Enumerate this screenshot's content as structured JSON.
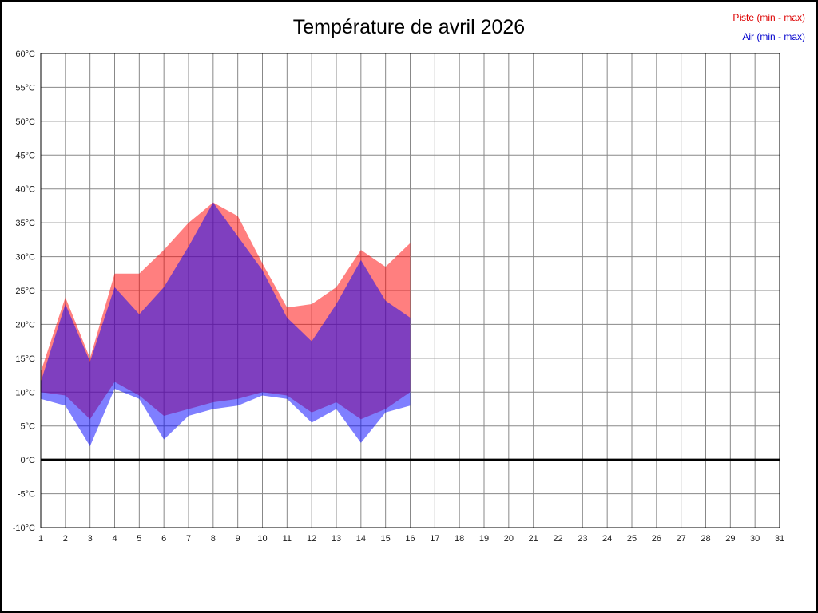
{
  "legend": [
    {
      "label": "Piste (min - max)",
      "color": "#dd0000"
    },
    {
      "label": "Air (min - max)",
      "color": "#0000cc"
    }
  ],
  "chart_data": {
    "type": "area",
    "title": "Température de avril 2026",
    "xlabel": "",
    "ylabel": "",
    "xlim": [
      1,
      31
    ],
    "ylim": [
      -10,
      60
    ],
    "grid": true,
    "grid_color": "#888888",
    "legend_position": "top-right",
    "x_ticks": [
      1,
      2,
      3,
      4,
      5,
      6,
      7,
      8,
      9,
      10,
      11,
      12,
      13,
      14,
      15,
      16,
      17,
      18,
      19,
      20,
      21,
      22,
      23,
      24,
      25,
      26,
      27,
      28,
      29,
      30,
      31
    ],
    "x_tick_labels": [
      "1",
      "2",
      "3",
      "4",
      "5",
      "6",
      "7",
      "8",
      "9",
      "10",
      "11",
      "12",
      "13",
      "14",
      "15",
      "16",
      "17",
      "18",
      "19",
      "20",
      "21",
      "22",
      "23",
      "24",
      "25",
      "26",
      "27",
      "28",
      "29",
      "30",
      "31"
    ],
    "y_ticks": [
      60,
      55,
      50,
      45,
      40,
      35,
      30,
      25,
      20,
      15,
      10,
      5,
      0,
      -5,
      -10
    ],
    "y_tick_labels": [
      "60°C",
      "55°C",
      "50°C",
      "45°C",
      "40°C",
      "35°C",
      "30°C",
      "25°C",
      "20°C",
      "15°C",
      "10°C",
      "5°C",
      "0°C",
      "-5°C",
      "-10°C"
    ],
    "zero_line": {
      "value": 0,
      "color": "#000000",
      "width": 3
    },
    "x": [
      1,
      2,
      3,
      4,
      5,
      6,
      7,
      8,
      9,
      10,
      11,
      12,
      13,
      14,
      15,
      16
    ],
    "series": [
      {
        "id": "piste",
        "name": "Piste (min - max)",
        "color": "#ff0000",
        "opacity": 0.5,
        "max": [
          13,
          24,
          15,
          27.5,
          27.5,
          31,
          35,
          38,
          36,
          29,
          22.5,
          23,
          25.5,
          31,
          28.5,
          32
        ],
        "min": [
          10,
          9.5,
          6,
          11.5,
          9.5,
          6.5,
          7.5,
          8.5,
          9,
          10,
          9.5,
          7,
          8.5,
          6,
          7.5,
          10
        ]
      },
      {
        "id": "air",
        "name": "Air (min - max)",
        "color": "#0000ff",
        "opacity": 0.5,
        "max": [
          11.5,
          23,
          14.5,
          25.5,
          21.5,
          25.5,
          31.5,
          38,
          33,
          28,
          21,
          17.5,
          23,
          29.5,
          23.5,
          21
        ],
        "min": [
          9,
          8,
          2,
          10.5,
          9,
          3,
          6.5,
          7.5,
          8,
          9.5,
          9,
          5.5,
          7.5,
          2.5,
          7,
          8
        ]
      }
    ]
  }
}
